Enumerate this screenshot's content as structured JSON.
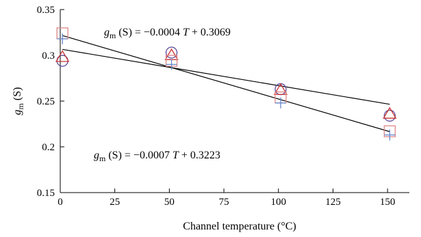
{
  "chart_data": {
    "type": "scatter",
    "xlabel": "Channel temperature (°C)",
    "ylabel": {
      "main": "g",
      "sub": "m",
      "unit": " (S)"
    },
    "xlim": [
      0,
      160
    ],
    "ylim": [
      0.15,
      0.35
    ],
    "xticks": [
      "0",
      "25",
      "50",
      "75",
      "100",
      "125",
      "150"
    ],
    "yticks": [
      "0.15",
      "0.2",
      "0.25",
      "0.3",
      "0.35"
    ],
    "grid": false,
    "series": [
      {
        "marker": "circle",
        "color": "#5a4a9a",
        "x": [
          1,
          51,
          101,
          151
        ],
        "y": [
          0.294,
          0.303,
          0.263,
          0.234
        ]
      },
      {
        "marker": "triangle",
        "color": "#cc3333",
        "x": [
          1,
          51,
          101,
          151
        ],
        "y": [
          0.298,
          0.3,
          0.262,
          0.236
        ]
      },
      {
        "marker": "square",
        "color": "#dd8888",
        "x": [
          1,
          51,
          101,
          151
        ],
        "y": [
          0.324,
          0.294,
          0.254,
          0.217
        ]
      },
      {
        "marker": "plus",
        "color": "#6688cc",
        "x": [
          1,
          51,
          101,
          151
        ],
        "y": [
          0.318,
          0.29,
          0.248,
          0.213
        ]
      }
    ],
    "fits": [
      {
        "slope": -0.0004,
        "intercept": 0.3069,
        "label": {
          "g": "g",
          "sub": "m",
          "rest": " (S) = −0.0004 ",
          "T": "T",
          "tail": " + 0.3069"
        }
      },
      {
        "slope": -0.0007,
        "intercept": 0.3223,
        "label": {
          "g": "g",
          "sub": "m",
          "rest": " (S) = −0.0007 ",
          "T": "T",
          "tail": " + 0.3223"
        }
      }
    ]
  }
}
